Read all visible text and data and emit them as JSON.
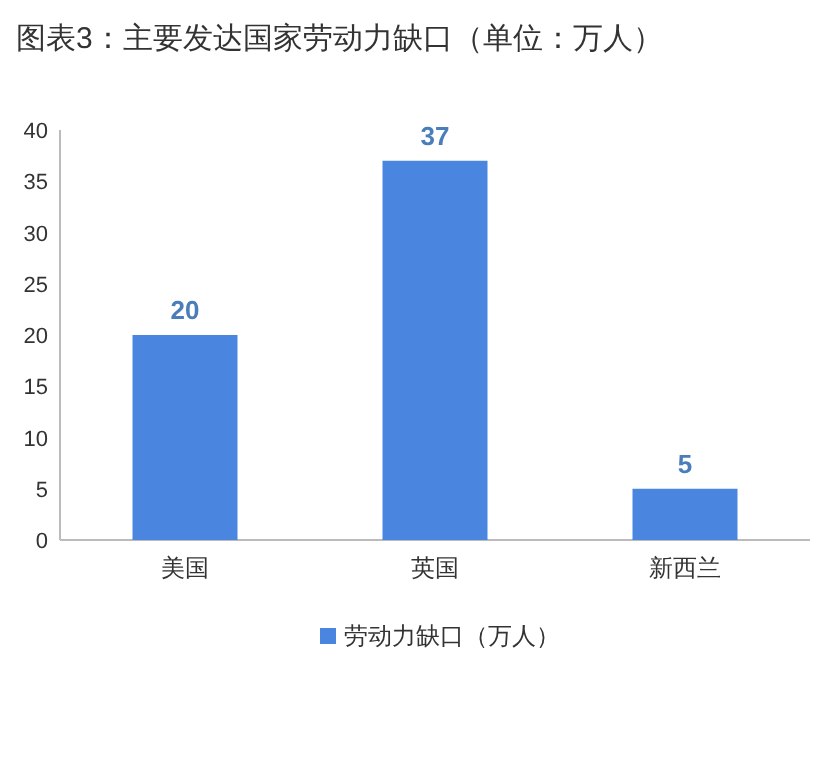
{
  "chart_data": {
    "type": "bar",
    "title": "图表3：主要发达国家劳动力缺口（单位：万人）",
    "categories": [
      "美国",
      "英国",
      "新西兰"
    ],
    "series": [
      {
        "name": "劳动力缺口（万人）",
        "color": "#4a86e0",
        "values": [
          20,
          37,
          5
        ]
      }
    ],
    "ylim": [
      0,
      40
    ],
    "yticks": [
      0,
      5,
      10,
      15,
      20,
      25,
      30,
      35,
      40
    ],
    "grid": false,
    "legend": "bottom",
    "data_labels": true
  }
}
